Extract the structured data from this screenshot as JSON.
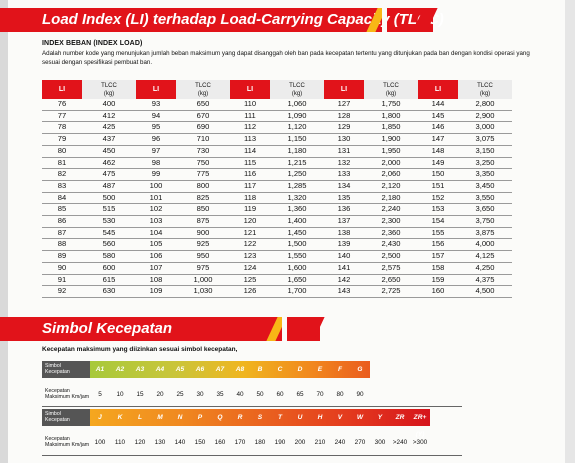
{
  "section1": {
    "title": "Load  Index (LI) terhadap Load-Carrying Capacity (TLCC)",
    "subtitle": "INDEX BEBAN (INDEX LOAD)",
    "description": "Adalah number kode yang menunjukan jumlah beban maksimum yang dapat disanggah oleh ban pada kecepatan tertentu yang ditunjukan pada ban dengan kondisi operasi yang sesuai dengan spesifikasi pembuat ban."
  },
  "table": {
    "li_header": "LI",
    "tlcc_header": "TLCC",
    "tlcc_unit": "(kg)",
    "columns": [
      {
        "rows": [
          [
            "76",
            "400"
          ],
          [
            "77",
            "412"
          ],
          [
            "78",
            "425"
          ],
          [
            "79",
            "437"
          ],
          [
            "80",
            "450"
          ],
          [
            "81",
            "462"
          ],
          [
            "82",
            "475"
          ],
          [
            "83",
            "487"
          ],
          [
            "84",
            "500"
          ],
          [
            "85",
            "515"
          ],
          [
            "86",
            "530"
          ],
          [
            "87",
            "545"
          ],
          [
            "88",
            "560"
          ],
          [
            "89",
            "580"
          ],
          [
            "90",
            "600"
          ],
          [
            "91",
            "615"
          ],
          [
            "92",
            "630"
          ]
        ]
      },
      {
        "rows": [
          [
            "93",
            "650"
          ],
          [
            "94",
            "670"
          ],
          [
            "95",
            "690"
          ],
          [
            "96",
            "710"
          ],
          [
            "97",
            "730"
          ],
          [
            "98",
            "750"
          ],
          [
            "99",
            "775"
          ],
          [
            "100",
            "800"
          ],
          [
            "101",
            "825"
          ],
          [
            "102",
            "850"
          ],
          [
            "103",
            "875"
          ],
          [
            "104",
            "900"
          ],
          [
            "105",
            "925"
          ],
          [
            "106",
            "950"
          ],
          [
            "107",
            "975"
          ],
          [
            "108",
            "1,000"
          ],
          [
            "109",
            "1,030"
          ]
        ]
      },
      {
        "rows": [
          [
            "110",
            "1,060"
          ],
          [
            "111",
            "1,090"
          ],
          [
            "112",
            "1,120"
          ],
          [
            "113",
            "1,150"
          ],
          [
            "114",
            "1,180"
          ],
          [
            "115",
            "1,215"
          ],
          [
            "116",
            "1,250"
          ],
          [
            "117",
            "1,285"
          ],
          [
            "118",
            "1,320"
          ],
          [
            "119",
            "1,360"
          ],
          [
            "120",
            "1,400"
          ],
          [
            "121",
            "1,450"
          ],
          [
            "122",
            "1,500"
          ],
          [
            "123",
            "1,550"
          ],
          [
            "124",
            "1,600"
          ],
          [
            "125",
            "1,650"
          ],
          [
            "126",
            "1,700"
          ]
        ]
      },
      {
        "rows": [
          [
            "127",
            "1,750"
          ],
          [
            "128",
            "1,800"
          ],
          [
            "129",
            "1,850"
          ],
          [
            "130",
            "1,900"
          ],
          [
            "131",
            "1,950"
          ],
          [
            "132",
            "2,000"
          ],
          [
            "133",
            "2,060"
          ],
          [
            "134",
            "2,120"
          ],
          [
            "135",
            "2,180"
          ],
          [
            "136",
            "2,240"
          ],
          [
            "137",
            "2,300"
          ],
          [
            "138",
            "2,360"
          ],
          [
            "139",
            "2,430"
          ],
          [
            "140",
            "2,500"
          ],
          [
            "141",
            "2,575"
          ],
          [
            "142",
            "2,650"
          ],
          [
            "143",
            "2,725"
          ]
        ]
      },
      {
        "rows": [
          [
            "144",
            "2,800"
          ],
          [
            "145",
            "2,900"
          ],
          [
            "146",
            "3,000"
          ],
          [
            "147",
            "3,075"
          ],
          [
            "148",
            "3,150"
          ],
          [
            "149",
            "3,250"
          ],
          [
            "150",
            "3,350"
          ],
          [
            "151",
            "3,450"
          ],
          [
            "152",
            "3,550"
          ],
          [
            "153",
            "3,650"
          ],
          [
            "154",
            "3,750"
          ],
          [
            "155",
            "3,875"
          ],
          [
            "156",
            "4,000"
          ],
          [
            "157",
            "4,125"
          ],
          [
            "158",
            "4,250"
          ],
          [
            "159",
            "4,375"
          ],
          [
            "160",
            "4,500"
          ]
        ]
      }
    ]
  },
  "section2": {
    "title": "Simbol Kecepatan",
    "description": "Kecepatan maksimum yang diizinkan sesuai simbol kecepatan,",
    "symbol_label": "Simbol Kecepatan",
    "speed_label": "Kecepatan Maksimum Km/jam",
    "row1_symbols": [
      "A1",
      "A2",
      "A3",
      "A4",
      "A5",
      "A6",
      "A7",
      "A8",
      "B",
      "C",
      "D",
      "E",
      "F",
      "G"
    ],
    "row1_speeds": [
      "5",
      "10",
      "15",
      "20",
      "25",
      "30",
      "35",
      "40",
      "50",
      "60",
      "65",
      "70",
      "80",
      "90"
    ],
    "row2_symbols": [
      "J",
      "K",
      "L",
      "M",
      "N",
      "P",
      "Q",
      "R",
      "S",
      "T",
      "U",
      "H",
      "V",
      "W",
      "Y",
      "ZR",
      "ZR+(Y)"
    ],
    "row2_speeds": [
      "100",
      "110",
      "120",
      "130",
      "140",
      "150",
      "160",
      "170",
      "180",
      "190",
      "200",
      "210",
      "240",
      "270",
      "300",
      ">240",
      ">300"
    ]
  },
  "colors": {
    "brand_red": "#e1131a",
    "accent_yellow": "#f8b716"
  }
}
